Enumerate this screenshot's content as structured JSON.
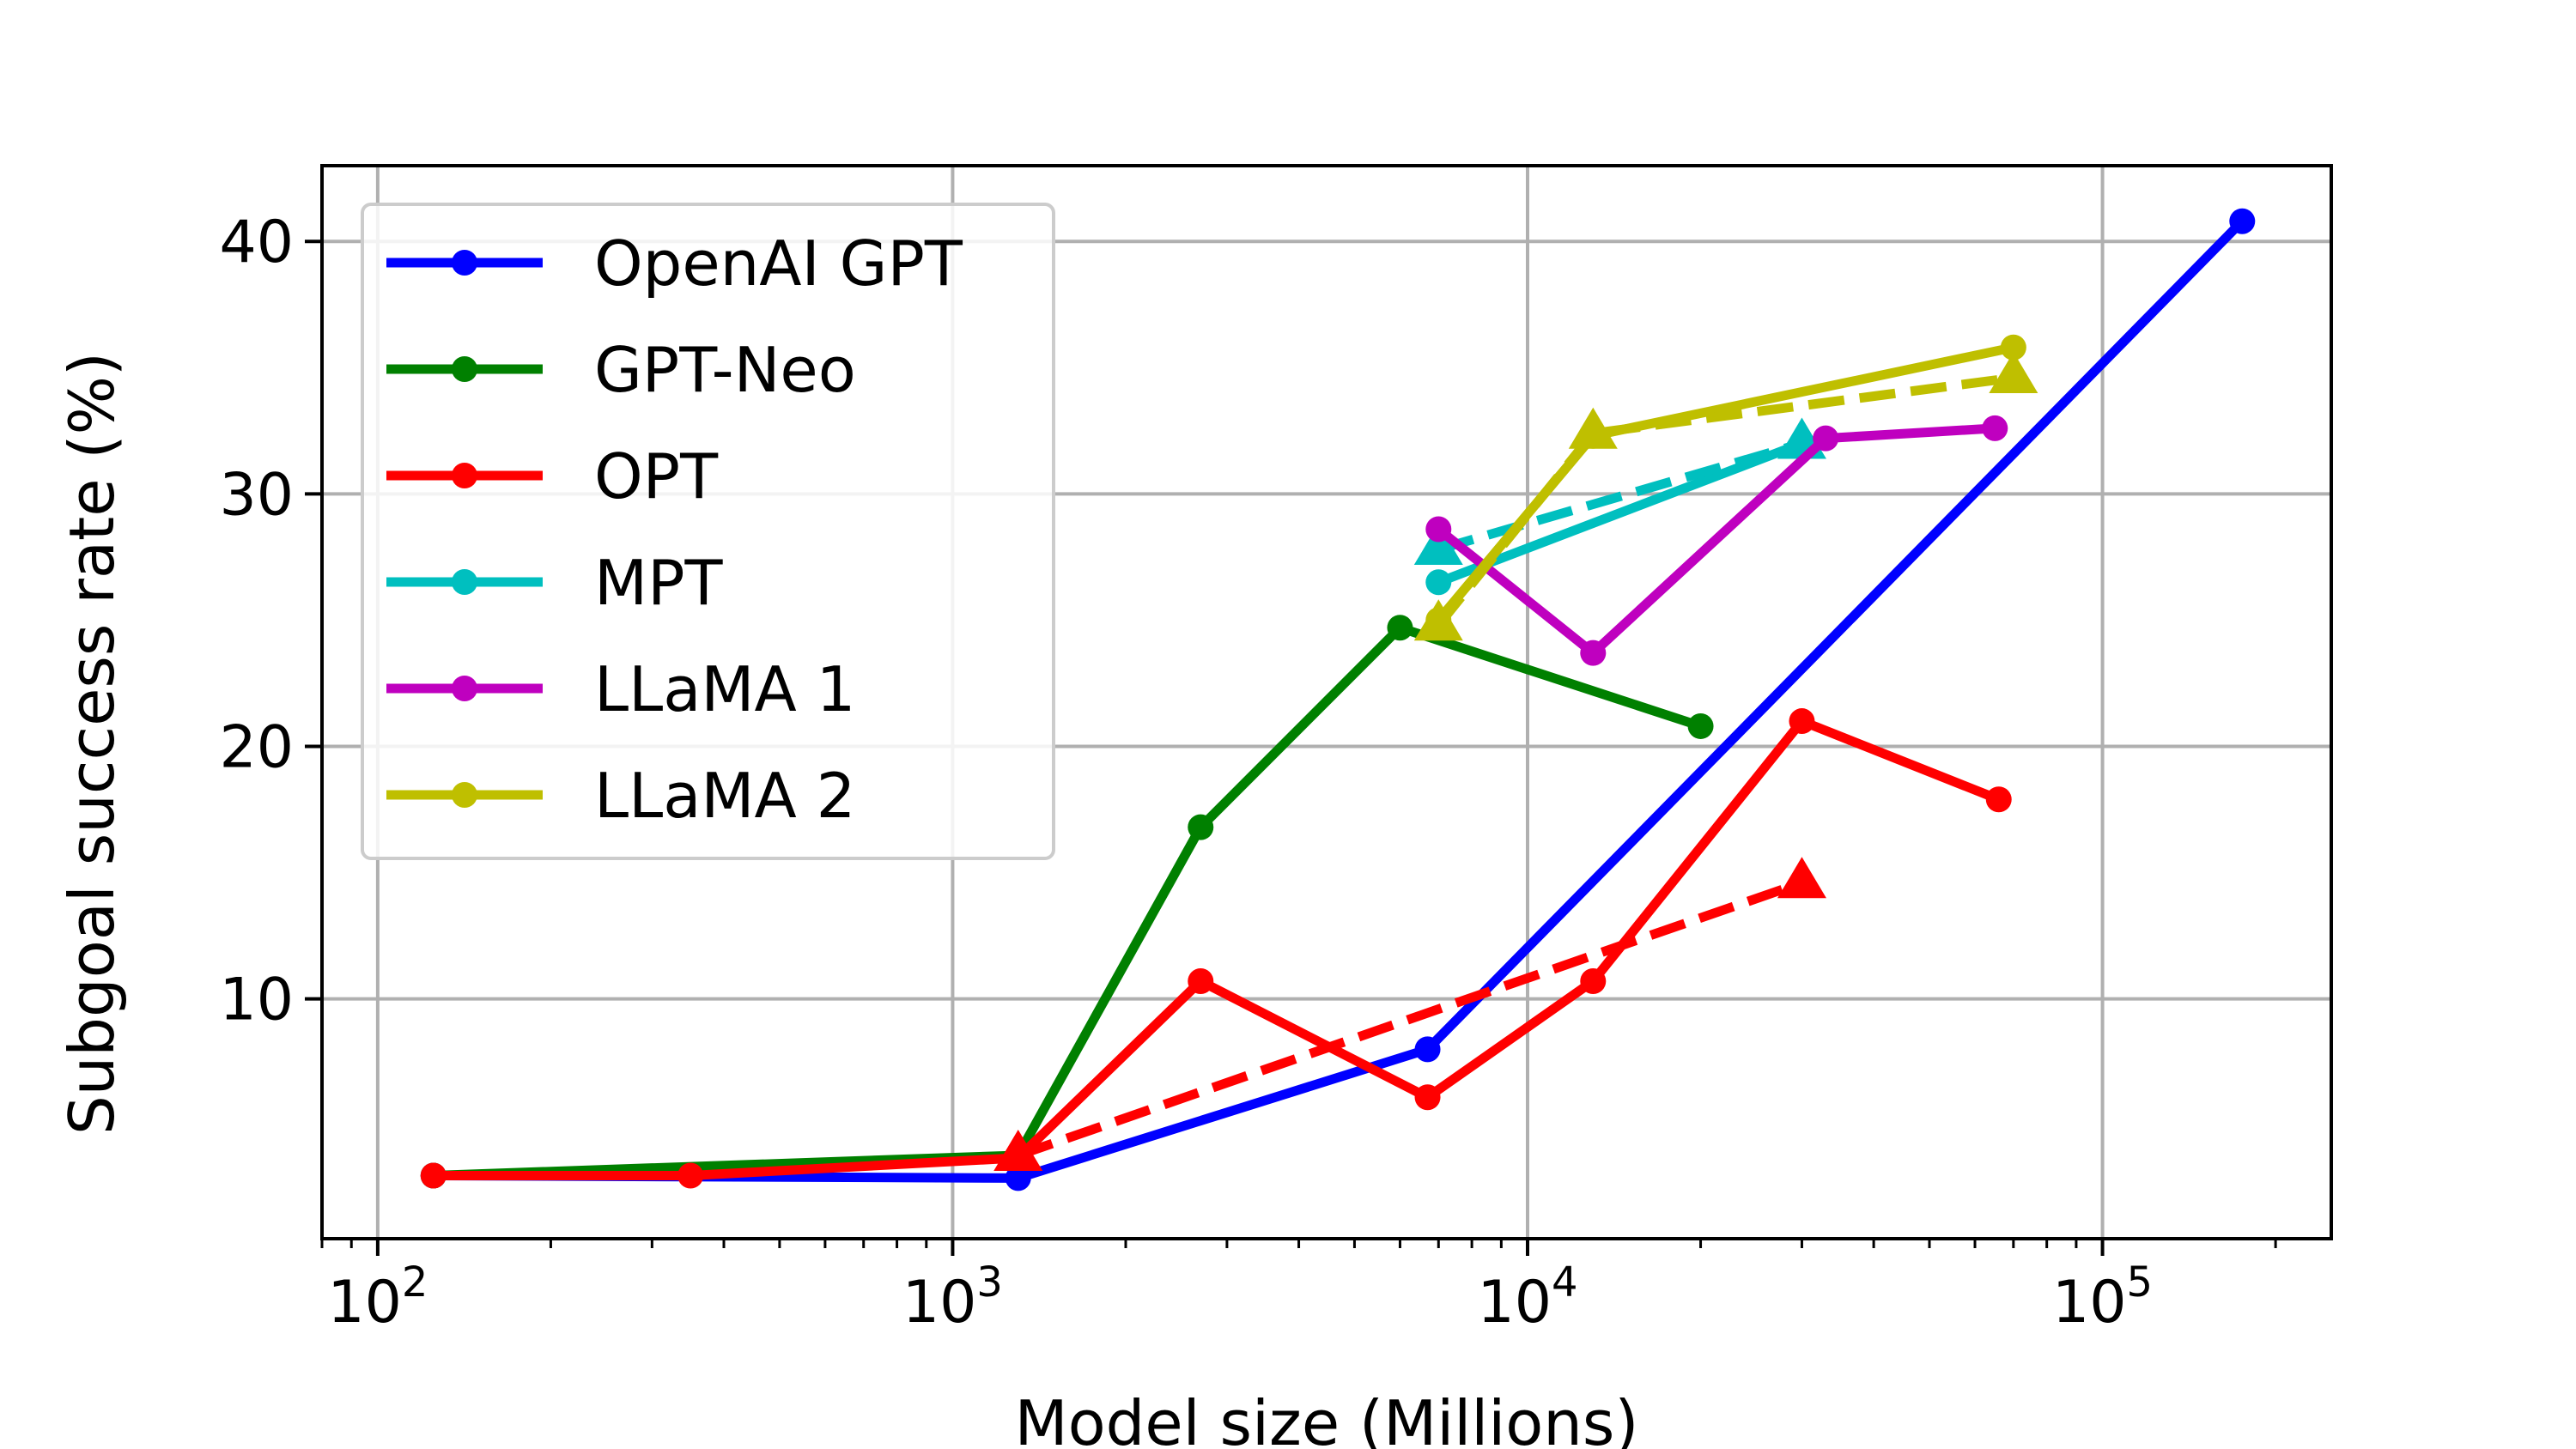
{
  "chart_data": {
    "type": "line",
    "xlabel": "Model size (Millions)",
    "ylabel": "Subgoal success rate (%)",
    "xscale": "log",
    "xlim": [
      80,
      250000
    ],
    "ylim": [
      0.5,
      43
    ],
    "grid": true,
    "legend_position": "top-left",
    "x_ticks": [
      {
        "base": "10",
        "exp": "2"
      },
      {
        "base": "10",
        "exp": "3"
      },
      {
        "base": "10",
        "exp": "4"
      },
      {
        "base": "10",
        "exp": "5"
      }
    ],
    "y_ticks": [
      "10",
      "20",
      "30",
      "40"
    ],
    "series": [
      {
        "name": "OpenAI GPT",
        "color": "#0000ff",
        "style": "solid",
        "marker": "circle",
        "x": [
          125,
          1300,
          6700,
          175000
        ],
        "y": [
          3.0,
          2.9,
          8.0,
          40.8
        ]
      },
      {
        "name": "GPT-Neo",
        "color": "#008000",
        "style": "solid",
        "marker": "circle",
        "x": [
          125,
          1300,
          2700,
          6000,
          20000
        ],
        "y": [
          3.0,
          3.8,
          16.8,
          24.7,
          20.8
        ]
      },
      {
        "name": "OPT",
        "color": "#ff0000",
        "style": "solid",
        "marker": "circle",
        "x": [
          125,
          350,
          1300,
          2700,
          6700,
          13000,
          30000,
          66000
        ],
        "y": [
          3.0,
          3.0,
          3.7,
          10.7,
          6.1,
          10.7,
          21.0,
          17.9
        ]
      },
      {
        "name": "OPT",
        "color": "#ff0000",
        "style": "dashed",
        "marker": "triangle",
        "show_in_legend": false,
        "x": [
          1300,
          30000
        ],
        "y": [
          3.8,
          14.6
        ]
      },
      {
        "name": "MPT",
        "color": "#00bfbf",
        "style": "solid",
        "marker": "circle",
        "x": [
          7000,
          30000
        ],
        "y": [
          26.5,
          32.0
        ]
      },
      {
        "name": "MPT",
        "color": "#00bfbf",
        "style": "dashed",
        "marker": "triangle",
        "show_in_legend": false,
        "x": [
          7000,
          30000
        ],
        "y": [
          27.8,
          32.0
        ]
      },
      {
        "name": "LLaMA 1",
        "color": "#bf00bf",
        "style": "solid",
        "marker": "circle",
        "x": [
          7000,
          13000,
          33000,
          65000
        ],
        "y": [
          28.6,
          23.7,
          32.2,
          32.6
        ]
      },
      {
        "name": "LLaMA 2",
        "color": "#bfbf00",
        "style": "solid",
        "marker": "circle",
        "x": [
          7000,
          13000,
          70000
        ],
        "y": [
          25.0,
          32.3,
          35.8
        ]
      },
      {
        "name": "LLaMA 2",
        "color": "#bfbf00",
        "style": "dashed",
        "marker": "triangle",
        "show_in_legend": false,
        "x": [
          7000,
          13000,
          70000
        ],
        "y": [
          24.8,
          32.4,
          34.6
        ]
      }
    ]
  }
}
